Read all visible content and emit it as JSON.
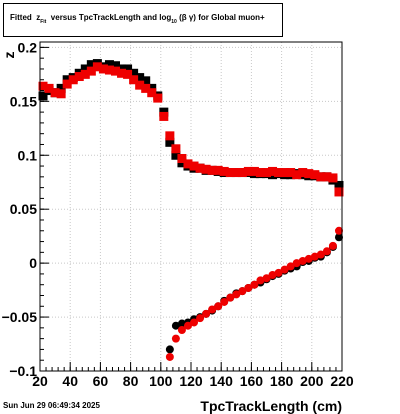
{
  "title": {
    "prefix": "Fitted",
    "z": "z",
    "z_sub": "Fit",
    "middle": "versus TpcTrackLength and log",
    "log_sub": "10",
    "bg": "(β γ)",
    "suffix": "for Global muon+"
  },
  "timestamp": "Sun Jun 29 06:49:34 2025",
  "chart_data": {
    "type": "scatter",
    "title": "Fitted z_Fit versus TpcTrackLength and log10(β γ) for Global muon+",
    "xlabel": "TpcTrackLength (cm)",
    "ylabel": "z",
    "xlim": [
      20,
      220
    ],
    "ylim": [
      -0.1,
      0.205
    ],
    "x_ticks": [
      20,
      40,
      60,
      80,
      100,
      120,
      140,
      160,
      180,
      200,
      220
    ],
    "x_tick_labels": [
      "20",
      "40",
      "60",
      "80",
      "100",
      "120",
      "140",
      "160",
      "180",
      "200",
      "220"
    ],
    "y_ticks": [
      -0.1,
      -0.05,
      0,
      0.05,
      0.1,
      0.15,
      0.2
    ],
    "y_tick_labels": [
      "−0.1",
      "−0.05",
      "0",
      "0.05",
      "0.1",
      "0.15",
      "0.2"
    ],
    "grid": true,
    "series": [
      {
        "marker": "square",
        "color": "#000000",
        "x": [
          22,
          26,
          30,
          34,
          38,
          42,
          46,
          50,
          54,
          58,
          62,
          66,
          70,
          74,
          78,
          82,
          86,
          90,
          94,
          98,
          102,
          106,
          110,
          114,
          118,
          122,
          126,
          130,
          134,
          138,
          142,
          146,
          150,
          154,
          158,
          162,
          166,
          170,
          174,
          178,
          182,
          186,
          190,
          194,
          198,
          202,
          206,
          210,
          214,
          218
        ],
        "y": [
          0.155,
          0.16,
          0.158,
          0.162,
          0.17,
          0.172,
          0.176,
          0.18,
          0.184,
          0.185,
          0.182,
          0.184,
          0.183,
          0.18,
          0.18,
          0.176,
          0.172,
          0.169,
          0.162,
          0.155,
          0.14,
          0.112,
          0.1,
          0.093,
          0.09,
          0.088,
          0.088,
          0.086,
          0.086,
          0.085,
          0.084,
          0.084,
          0.084,
          0.084,
          0.084,
          0.083,
          0.083,
          0.083,
          0.082,
          0.083,
          0.082,
          0.082,
          0.083,
          0.082,
          0.081,
          0.081,
          0.08,
          0.08,
          0.077,
          0.072
        ]
      },
      {
        "marker": "square",
        "color": "#ee0000",
        "x": [
          22,
          26,
          30,
          34,
          38,
          42,
          46,
          50,
          54,
          58,
          62,
          66,
          70,
          74,
          78,
          82,
          86,
          90,
          94,
          98,
          102,
          106,
          110,
          114,
          118,
          122,
          126,
          130,
          134,
          138,
          142,
          146,
          150,
          154,
          158,
          162,
          166,
          170,
          174,
          178,
          182,
          186,
          190,
          194,
          198,
          202,
          206,
          210,
          214,
          218
        ],
        "y": [
          0.164,
          0.162,
          0.158,
          0.157,
          0.166,
          0.17,
          0.173,
          0.175,
          0.178,
          0.182,
          0.18,
          0.179,
          0.178,
          0.176,
          0.175,
          0.17,
          0.165,
          0.162,
          0.158,
          0.153,
          0.136,
          0.118,
          0.106,
          0.097,
          0.092,
          0.09,
          0.088,
          0.087,
          0.086,
          0.086,
          0.085,
          0.084,
          0.084,
          0.084,
          0.085,
          0.085,
          0.084,
          0.084,
          0.085,
          0.084,
          0.084,
          0.084,
          0.082,
          0.084,
          0.083,
          0.082,
          0.08,
          0.08,
          0.079,
          0.066
        ]
      },
      {
        "marker": "circle",
        "color": "#000000",
        "x": [
          106,
          110,
          114,
          118,
          122,
          126,
          130,
          134,
          138,
          142,
          146,
          150,
          154,
          158,
          162,
          166,
          170,
          174,
          178,
          182,
          186,
          190,
          194,
          198,
          202,
          206,
          210,
          214,
          218
        ],
        "y": [
          -0.08,
          -0.058,
          -0.056,
          -0.055,
          -0.052,
          -0.05,
          -0.047,
          -0.044,
          -0.04,
          -0.035,
          -0.032,
          -0.028,
          -0.026,
          -0.023,
          -0.02,
          -0.018,
          -0.015,
          -0.012,
          -0.01,
          -0.007,
          -0.005,
          -0.003,
          0.001,
          0.002,
          0.005,
          0.006,
          0.01,
          0.015,
          0.024
        ]
      },
      {
        "marker": "circle",
        "color": "#ee0000",
        "x": [
          106,
          110,
          114,
          118,
          122,
          126,
          130,
          134,
          138,
          142,
          146,
          150,
          154,
          158,
          162,
          166,
          170,
          174,
          178,
          182,
          186,
          190,
          194,
          198,
          202,
          206,
          210,
          214,
          218
        ],
        "y": [
          -0.087,
          -0.07,
          -0.062,
          -0.058,
          -0.055,
          -0.051,
          -0.047,
          -0.043,
          -0.04,
          -0.036,
          -0.032,
          -0.029,
          -0.026,
          -0.023,
          -0.02,
          -0.016,
          -0.014,
          -0.011,
          -0.009,
          -0.006,
          -0.003,
          0.0,
          0.002,
          0.004,
          0.006,
          0.008,
          0.011,
          0.016,
          0.03
        ]
      }
    ]
  }
}
